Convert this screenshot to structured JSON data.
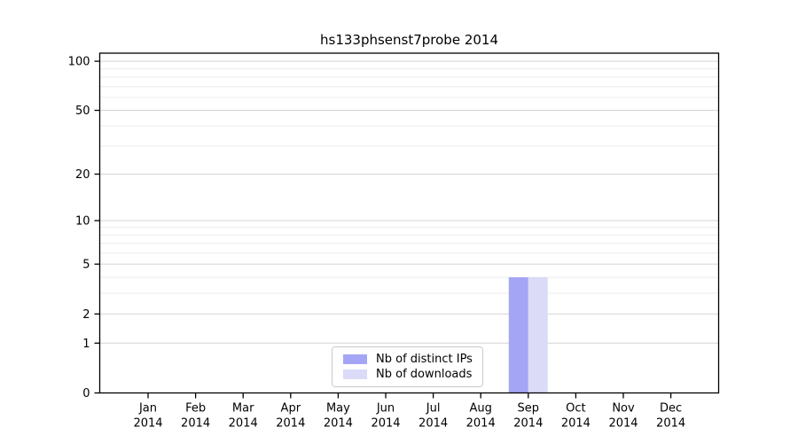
{
  "chart_data": {
    "type": "bar",
    "title": "hs133phsenst7probe 2014",
    "categories": [
      "Jan 2014",
      "Feb 2014",
      "Mar 2014",
      "Apr 2014",
      "May 2014",
      "Jun 2014",
      "Jul 2014",
      "Aug 2014",
      "Sep 2014",
      "Oct 2014",
      "Nov 2014",
      "Dec 2014"
    ],
    "series": [
      {
        "name": "Nb of distinct IPs",
        "color": "#a5a5f5",
        "values": [
          0,
          0,
          0,
          0,
          0,
          0,
          0,
          0,
          4,
          0,
          0,
          0
        ]
      },
      {
        "name": "Nb of downloads",
        "color": "#dbdbf8",
        "values": [
          0,
          0,
          0,
          0,
          0,
          0,
          0,
          0,
          4,
          0,
          0,
          0
        ]
      }
    ],
    "xlabel": "",
    "ylabel": "",
    "yscale": "log10(1+x)",
    "ylim": [
      0,
      112
    ],
    "yticks": [
      0,
      1,
      2,
      5,
      10,
      20,
      50,
      100
    ],
    "yticks_minor": [
      3,
      4,
      6,
      7,
      8,
      9,
      30,
      40,
      60,
      70,
      80,
      90
    ],
    "grid": "horizontal major and minor gridlines",
    "legend_position": "bottom-center-inside",
    "colors": {
      "axis": "#000000",
      "text": "#000000",
      "grid_major": "#d4d4d4",
      "grid_minor": "#ececec",
      "background": "#ffffff"
    }
  }
}
